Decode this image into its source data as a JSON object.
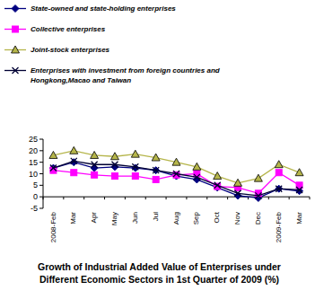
{
  "chart_data": {
    "type": "line",
    "title": "Growth of Industrial Added Value of Enterprises under Different Economic Sectors in 1st Quarter of 2009 (%)",
    "categories": [
      "2008-Feb",
      "Mar",
      "Apr",
      "May",
      "Jun",
      "Jul",
      "Aug",
      "Sep",
      "Oct",
      "Nov",
      "Dec",
      "2009-Feb",
      "Mar"
    ],
    "series": [
      {
        "name": "State-owned and state-holding  enterprises",
        "color": "#000080",
        "marker": "diamond",
        "values": [
          12.5,
          15,
          12.5,
          13,
          12.5,
          11.5,
          9,
          7.5,
          4,
          0.5,
          -0.5,
          3.5,
          2.5
        ]
      },
      {
        "name": "Collective enterprises",
        "color": "#ff00ff",
        "marker": "square",
        "values": [
          11.5,
          10.5,
          9.5,
          9,
          9,
          7.5,
          9.5,
          10,
          4.5,
          4,
          1.5,
          10.5,
          5
        ]
      },
      {
        "name": "Joint-stock enterprises",
        "color": "#b5b54a",
        "marker": "triangle",
        "values": [
          18,
          20,
          18,
          17.5,
          18.5,
          17,
          15,
          13,
          9,
          6,
          8,
          14,
          10.5
        ]
      },
      {
        "name": "Enterprises with investment from foreign countries and Hongkong,Macao and Taiwan",
        "color": "#000033",
        "marker": "x",
        "values": [
          12.5,
          15.5,
          14,
          14,
          13,
          11.5,
          10,
          8.5,
          5,
          1.5,
          0.5,
          3.5,
          3
        ]
      }
    ],
    "ylim": [
      -5,
      25
    ],
    "yticks": [
      -5,
      0,
      5,
      10,
      15,
      20,
      25
    ],
    "grid": false,
    "legend": "top"
  }
}
